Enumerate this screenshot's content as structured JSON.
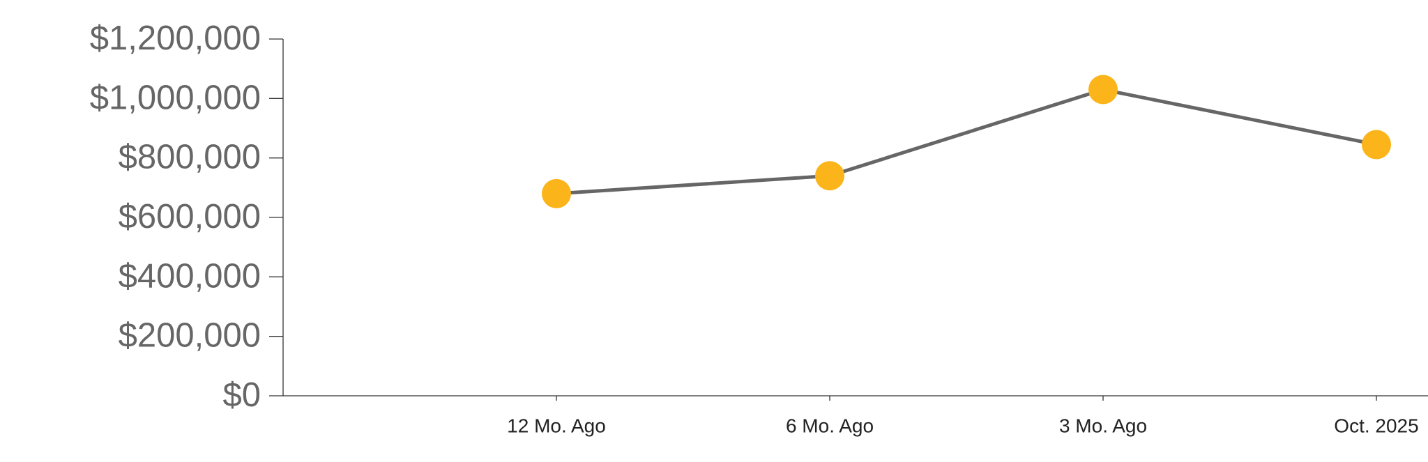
{
  "chart_data": {
    "type": "line",
    "categories": [
      "12 Mo. Ago",
      "6 Mo. Ago",
      "3 Mo. Ago",
      "Oct. 2025"
    ],
    "values": [
      680000,
      740000,
      1030000,
      845000
    ],
    "color": "#fbb41a",
    "line_color": "#666666",
    "ylim": [
      0,
      1200000
    ],
    "yticks": [
      {
        "value": 0,
        "label": "$0"
      },
      {
        "value": 200000,
        "label": "$200,000"
      },
      {
        "value": 400000,
        "label": "$400,000"
      },
      {
        "value": 600000,
        "label": "$600,000"
      },
      {
        "value": 800000,
        "label": "$800,000"
      },
      {
        "value": 1000000,
        "label": "$1,000,000"
      },
      {
        "value": 1200000,
        "label": "$1,200,000"
      }
    ],
    "grid": false
  }
}
